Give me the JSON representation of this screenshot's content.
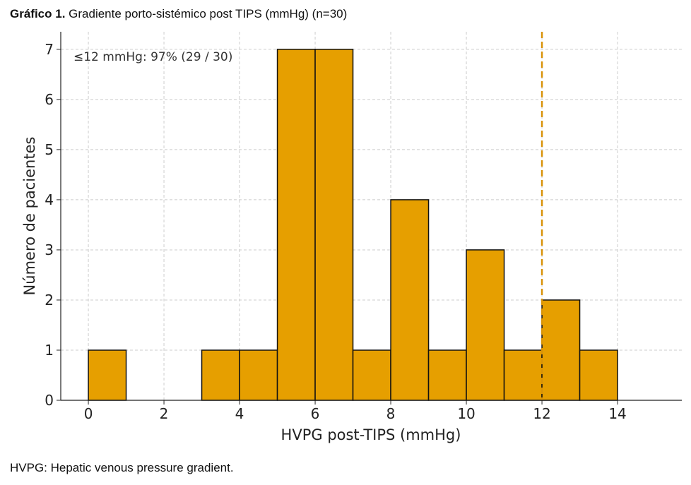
{
  "caption": {
    "label": "Gráfico 1.",
    "text": " Gradiente porto-sistémico post TIPS (mmHg) (n=30)"
  },
  "footnote": "HVPG: Hepatic venous pressure gradient.",
  "chart_data": {
    "type": "bar",
    "subtype": "histogram",
    "bins": [
      [
        0,
        1
      ],
      [
        1,
        2
      ],
      [
        2,
        3
      ],
      [
        3,
        4
      ],
      [
        4,
        5
      ],
      [
        5,
        6
      ],
      [
        6,
        7
      ],
      [
        7,
        8
      ],
      [
        8,
        9
      ],
      [
        9,
        10
      ],
      [
        10,
        11
      ],
      [
        11,
        12
      ],
      [
        12,
        13
      ],
      [
        13,
        14
      ]
    ],
    "values": [
      1,
      0,
      0,
      1,
      1,
      7,
      7,
      1,
      4,
      1,
      3,
      1,
      2,
      1
    ],
    "xlabel": "HVPG post-TIPS (mmHg)",
    "ylabel": "Número de pacientes",
    "xlim": [
      -0.73,
      15.7
    ],
    "ylim": [
      0,
      7.35
    ],
    "xticks": [
      0,
      2,
      4,
      6,
      8,
      10,
      12,
      14
    ],
    "yticks": [
      0,
      1,
      2,
      3,
      4,
      5,
      6,
      7
    ],
    "grid": true,
    "threshold": 12,
    "annotation": "≤12 mmHg: 97% (29 / 30)",
    "colors": {
      "bar": "#E69F00",
      "edge": "#111111",
      "threshold": "#D9930A",
      "grid": "#cccccc"
    }
  }
}
